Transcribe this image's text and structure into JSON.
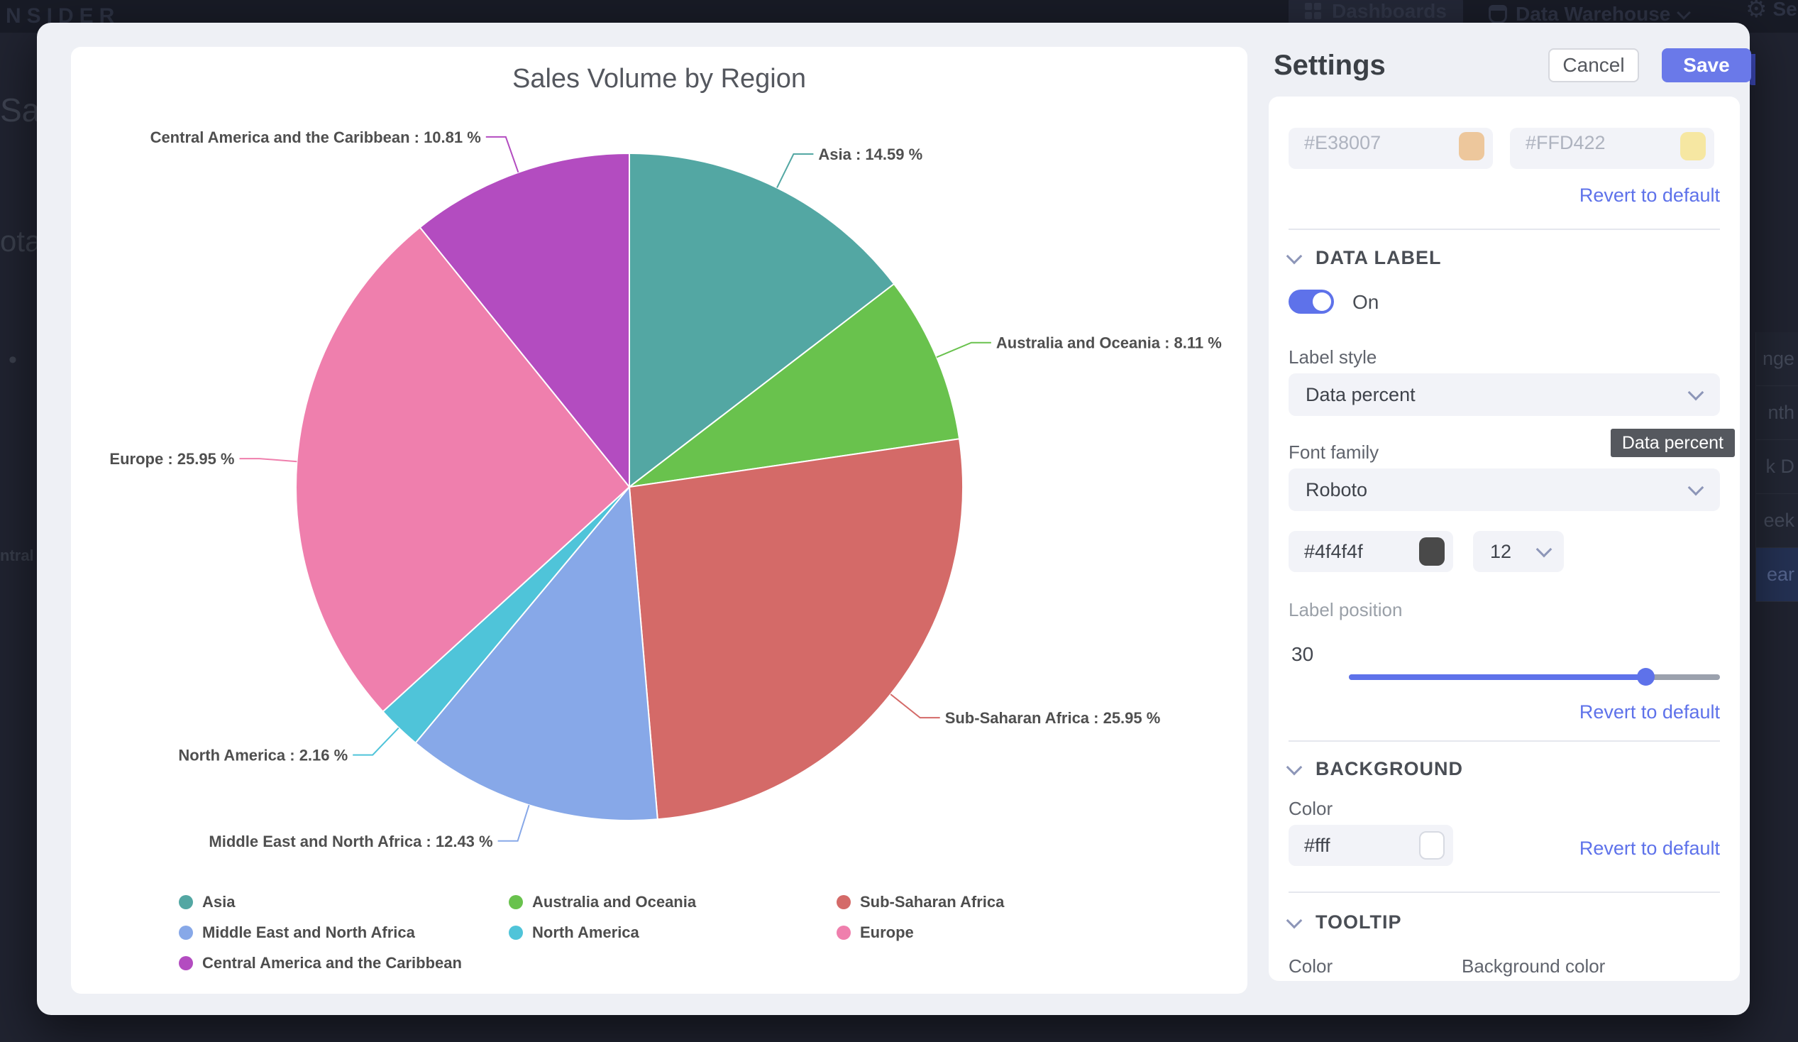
{
  "theme": {
    "accent": "#5e72ea",
    "save_bg": "#6a79e9",
    "tooltip_bg": "#55585e",
    "pie_label_color": "#4f4f4f",
    "swatch_dark": "#494949",
    "swatch_white": "#ffffff"
  },
  "topbar": {
    "logo": "NSIDER",
    "dashboards_label": "Dashboards",
    "warehouse_label": "Data Warehouse",
    "settings_partial": "Se"
  },
  "backdrop": {
    "left_fragments": {
      "heading": "Sal",
      "subheading": "ota",
      "bullet": "•",
      "small": "ntral"
    },
    "right_menu": [
      "nge",
      "nth",
      "k D",
      "eek",
      "ear"
    ],
    "right_menu_selected_index": 4
  },
  "chart_data": {
    "type": "pie",
    "title": "Sales Volume by Region",
    "value_unit": "%",
    "label_format": "{name} : {value} %",
    "direction": "clockwise",
    "start_angle": "top",
    "legend_position": "bottom",
    "series": [
      {
        "name": "Asia",
        "value": 14.59,
        "color": "#53a7a3"
      },
      {
        "name": "Australia and Oceania",
        "value": 8.11,
        "color": "#69c24d"
      },
      {
        "name": "Sub-Saharan Africa",
        "value": 25.95,
        "color": "#d46a68"
      },
      {
        "name": "Middle East and North Africa",
        "value": 12.43,
        "color": "#87a8e8"
      },
      {
        "name": "North America",
        "value": 2.16,
        "color": "#4fc4d9"
      },
      {
        "name": "Europe",
        "value": 25.95,
        "color": "#ef7fad"
      },
      {
        "name": "Central America and the Caribbean",
        "value": 10.81,
        "color": "#b34cc0"
      }
    ]
  },
  "settings": {
    "title": "Settings",
    "cancel_label": "Cancel",
    "save_label": "Save",
    "revert_label": "Revert to default",
    "scrolled_colors": [
      {
        "value": "#E38007",
        "swatch": "#edc79c"
      },
      {
        "value": "#FFD422",
        "swatch": "#f6e7a2"
      }
    ],
    "data_label": {
      "header": "DATA LABEL",
      "toggle_label": "On",
      "label_style_label": "Label style",
      "label_style_value": "Data percent",
      "tooltip_value": "Data percent",
      "font_family_label": "Font family",
      "font_family_value": "Roboto",
      "color_value": "#4f4f4f",
      "size_value": "12",
      "position_label": "Label position",
      "position_value": "30",
      "position_percent": 80
    },
    "background": {
      "header": "BACKGROUND",
      "color_label": "Color",
      "color_value": "#fff"
    },
    "tooltip_section": {
      "header": "TOOLTIP",
      "color_label": "Color",
      "bg_color_label": "Background color"
    }
  }
}
